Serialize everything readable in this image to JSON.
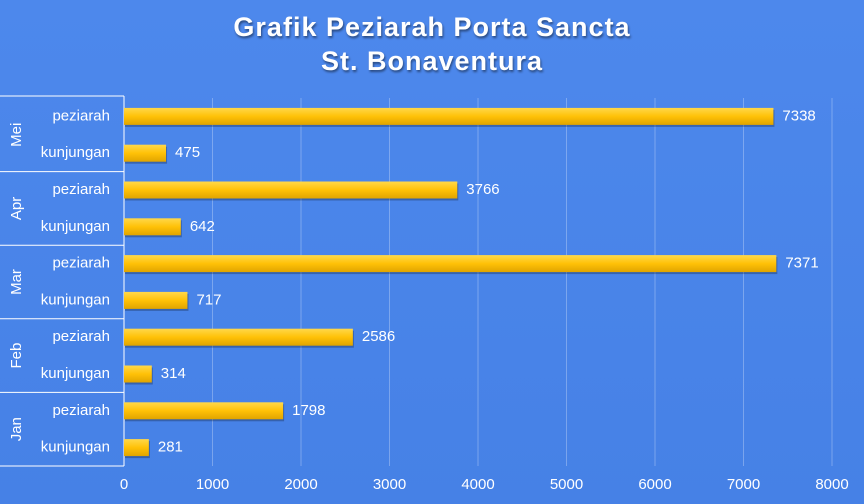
{
  "chart_data": {
    "type": "bar",
    "orientation": "horizontal",
    "title_line1": "Grafik Peziarah Porta Sancta",
    "title_line2": "St. Bonaventura",
    "groups": [
      "Mei",
      "Apr",
      "Mar",
      "Feb",
      "Jan"
    ],
    "categories": [
      "peziarah",
      "kunjungan"
    ],
    "values": {
      "Mei": [
        7338,
        475
      ],
      "Apr": [
        3766,
        642
      ],
      "Mar": [
        7371,
        717
      ],
      "Feb": [
        2586,
        314
      ],
      "Jan": [
        1798,
        281
      ]
    },
    "xlim": [
      0,
      8000
    ],
    "xticks": [
      0,
      1000,
      2000,
      3000,
      4000,
      5000,
      6000,
      7000,
      8000
    ],
    "grid": true,
    "colors": {
      "bar": "#ffc107",
      "background": "#4a86e8",
      "text": "#ffffff"
    }
  }
}
